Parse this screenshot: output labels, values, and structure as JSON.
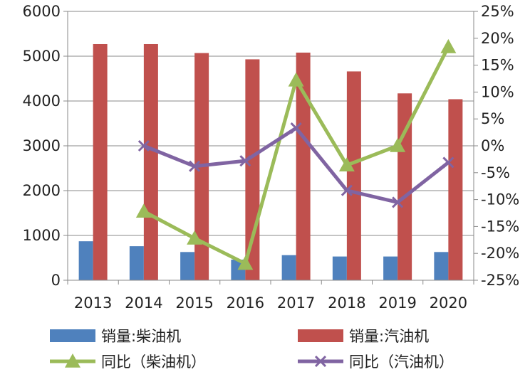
{
  "chart_data": {
    "type": "bar",
    "categories": [
      "2013",
      "2014",
      "2015",
      "2016",
      "2017",
      "2018",
      "2019",
      "2020"
    ],
    "ylim_left": [
      0,
      6000
    ],
    "yticks_left": [
      "0",
      "1000",
      "2000",
      "3000",
      "4000",
      "5000",
      "6000"
    ],
    "ylim_right": [
      -25,
      25
    ],
    "yticks_right": [
      "-25%",
      "-20%",
      "-15%",
      "-10%",
      "-5%",
      "0%",
      "5%",
      "10%",
      "15%",
      "20%",
      "25%"
    ],
    "grid": true,
    "legend_position": "bottom",
    "series": [
      {
        "name": "销量:柴油机",
        "kind": "bar",
        "axis": "left",
        "color": "#4F81BD",
        "values": [
          870,
          760,
          630,
          460,
          560,
          530,
          530,
          630
        ]
      },
      {
        "name": "销量:汽油机",
        "kind": "bar",
        "axis": "left",
        "color": "#C0504D",
        "values": [
          5270,
          5270,
          5070,
          4930,
          5080,
          4660,
          4170,
          4040
        ]
      },
      {
        "name": "同比（柴油机）",
        "kind": "line",
        "axis": "right",
        "color": "#9BBB59",
        "marker": "triangle",
        "values": [
          null,
          -12.2,
          -17.2,
          -21.9,
          12.2,
          -3.6,
          0,
          18.4
        ]
      },
      {
        "name": "同比（汽油机）",
        "kind": "line",
        "axis": "right",
        "color": "#8064A2",
        "marker": "x",
        "values": [
          null,
          0,
          -3.8,
          -2.8,
          3.3,
          -8.3,
          -10.5,
          -3.1
        ]
      }
    ]
  }
}
